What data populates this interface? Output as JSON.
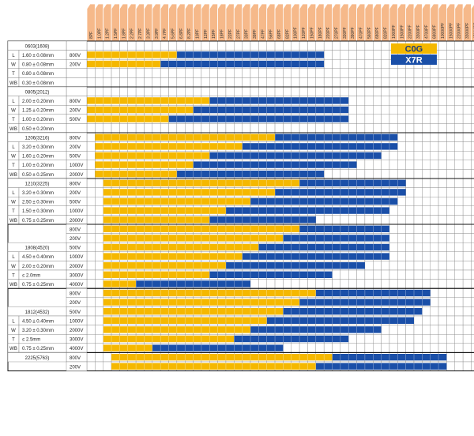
{
  "chart_data": {
    "type": "table",
    "capacitance_columns": [
      "8PF",
      "1.0PF",
      "1.2PF",
      "1.5PF",
      "1.8PF",
      "2.2PF",
      "2.7PF",
      "3.3PF",
      "3.9PF",
      "4.7PF",
      "5.6PF",
      "6.8PF",
      "8.2PF",
      "10PF",
      "12PF",
      "15PF",
      "18PF",
      "22PF",
      "27PF",
      "33PF",
      "39PF",
      "47PF",
      "56PF",
      "68PF",
      "82PF",
      "100PF",
      "120PF",
      "150PF",
      "180PF",
      "220PF",
      "270PF",
      "330PF",
      "390PF",
      "470PF",
      "560PF",
      "680PF",
      "820PF",
      "1000PF",
      "1500PF",
      "2200PF",
      "3300PF",
      "4700PF",
      "6800PF",
      "10000PF",
      "15000PF",
      "22000PF",
      "33000PF",
      "47000PF",
      "68000PF",
      "100000PF",
      "150000PF",
      "220000PF"
    ],
    "legend": [
      {
        "label": "C0G",
        "color": "#f5b800"
      },
      {
        "label": "X7R",
        "color": "#1a4fa8"
      }
    ],
    "sizes": [
      {
        "name": "0603(1608)",
        "dims": [
          {
            "key": "L",
            "value": "1.60 ± 0.08mm"
          },
          {
            "key": "W",
            "value": "0.80 ± 0.08mm"
          },
          {
            "key": "T",
            "value": "0.80 ± 0.08mm"
          },
          {
            "key": "WB",
            "value": "0.30 ± 0.08mm"
          }
        ],
        "rows": [
          {
            "voltage": "",
            "c0g": [
              0,
              0
            ],
            "x7r": [
              0,
              0
            ]
          },
          {
            "voltage": "800V",
            "c0g": [
              0,
              11
            ],
            "x7r": [
              11,
              29
            ]
          },
          {
            "voltage": "200V",
            "c0g": [
              0,
              9
            ],
            "x7r": [
              9,
              29
            ]
          },
          {
            "voltage": "",
            "c0g": [
              0,
              0
            ],
            "x7r": [
              0,
              0
            ]
          },
          {
            "voltage": "",
            "c0g": [
              0,
              0
            ],
            "x7r": [
              0,
              0
            ]
          }
        ]
      },
      {
        "name": "0805(2012)",
        "dims": [
          {
            "key": "L",
            "value": "2.00 ± 0.20mm"
          },
          {
            "key": "W",
            "value": "1.25 ± 0.20mm"
          },
          {
            "key": "T",
            "value": "1.00 ± 0.20mm"
          },
          {
            "key": "WB",
            "value": "0.50 ± 0.20mm"
          }
        ],
        "rows": [
          {
            "voltage": "",
            "c0g": [
              0,
              0
            ],
            "x7r": [
              0,
              0
            ]
          },
          {
            "voltage": "800V",
            "c0g": [
              0,
              15
            ],
            "x7r": [
              15,
              32
            ]
          },
          {
            "voltage": "200V",
            "c0g": [
              0,
              13
            ],
            "x7r": [
              13,
              32
            ]
          },
          {
            "voltage": "500V",
            "c0g": [
              0,
              10
            ],
            "x7r": [
              10,
              32
            ]
          },
          {
            "voltage": "",
            "c0g": [
              0,
              0
            ],
            "x7r": [
              0,
              0
            ]
          }
        ]
      },
      {
        "name": "1206(3216)",
        "dims": [
          {
            "key": "L",
            "value": "3.20 ± 0.30mm"
          },
          {
            "key": "W",
            "value": "1.60 ± 0.20mm"
          },
          {
            "key": "T",
            "value": "1.00 ± 0.20mm"
          },
          {
            "key": "WB",
            "value": "0.50 ± 0.25mm"
          }
        ],
        "rows": [
          {
            "voltage": "800V",
            "c0g": [
              1,
              23
            ],
            "x7r": [
              23,
              38
            ]
          },
          {
            "voltage": "200V",
            "c0g": [
              1,
              19
            ],
            "x7r": [
              19,
              38
            ]
          },
          {
            "voltage": "500V",
            "c0g": [
              1,
              15
            ],
            "x7r": [
              15,
              36
            ]
          },
          {
            "voltage": "1000V",
            "c0g": [
              1,
              13
            ],
            "x7r": [
              13,
              33
            ]
          },
          {
            "voltage": "2000V",
            "c0g": [
              1,
              11
            ],
            "x7r": [
              11,
              29
            ]
          }
        ]
      },
      {
        "name": "1210(3225)",
        "dims": [
          {
            "key": "L",
            "value": "3.20 ± 0.30mm"
          },
          {
            "key": "W",
            "value": "2.50 ± 0.30mm"
          },
          {
            "key": "T",
            "value": "1.50 ± 0.30mm"
          },
          {
            "key": "WB",
            "value": "0.75 ± 0.25mm"
          }
        ],
        "rows": [
          {
            "voltage": "800V",
            "c0g": [
              2,
              26
            ],
            "x7r": [
              26,
              39
            ]
          },
          {
            "voltage": "200V",
            "c0g": [
              2,
              23
            ],
            "x7r": [
              23,
              39
            ]
          },
          {
            "voltage": "500V",
            "c0g": [
              2,
              20
            ],
            "x7r": [
              20,
              38
            ]
          },
          {
            "voltage": "1000V",
            "c0g": [
              2,
              17
            ],
            "x7r": [
              17,
              37
            ]
          },
          {
            "voltage": "2000V",
            "c0g": [
              2,
              15
            ],
            "x7r": [
              15,
              28
            ]
          }
        ]
      },
      {
        "name": "1808(4520)",
        "dims": [
          {
            "key": "L",
            "value": "4.50 ± 0.40mm"
          },
          {
            "key": "W",
            "value": "2.00 ± 0.20mm"
          },
          {
            "key": "T",
            "value": "≤ 2.0mm"
          },
          {
            "key": "WB",
            "value": "0.75 ± 0.25mm"
          }
        ],
        "rows": [
          {
            "voltage": "800V",
            "c0g": [
              2,
              26
            ],
            "x7r": [
              26,
              37
            ]
          },
          {
            "voltage": "200V",
            "c0g": [
              2,
              24
            ],
            "x7r": [
              24,
              37
            ]
          },
          {
            "voltage": "500V",
            "c0g": [
              2,
              21
            ],
            "x7r": [
              21,
              37
            ]
          },
          {
            "voltage": "1000V",
            "c0g": [
              2,
              19
            ],
            "x7r": [
              19,
              37
            ]
          },
          {
            "voltage": "2000V",
            "c0g": [
              2,
              17
            ],
            "x7r": [
              17,
              34
            ]
          },
          {
            "voltage": "3000V",
            "c0g": [
              2,
              15
            ],
            "x7r": [
              15,
              30
            ]
          },
          {
            "voltage": "4000V",
            "c0g": [
              2,
              6
            ],
            "x7r": [
              6,
              20
            ]
          }
        ]
      },
      {
        "name": "1812(4532)",
        "dims": [
          {
            "key": "L",
            "value": "4.50 ± 0.40mm"
          },
          {
            "key": "W",
            "value": "3.20 ± 0.30mm"
          },
          {
            "key": "T",
            "value": "≤ 2.5mm"
          },
          {
            "key": "WB",
            "value": "0.75 ± 0.25mm"
          }
        ],
        "rows": [
          {
            "voltage": "800V",
            "c0g": [
              2,
              28
            ],
            "x7r": [
              28,
              42
            ]
          },
          {
            "voltage": "200V",
            "c0g": [
              2,
              26
            ],
            "x7r": [
              26,
              42
            ]
          },
          {
            "voltage": "500V",
            "c0g": [
              2,
              24
            ],
            "x7r": [
              24,
              41
            ]
          },
          {
            "voltage": "1000V",
            "c0g": [
              2,
              22
            ],
            "x7r": [
              22,
              40
            ]
          },
          {
            "voltage": "2000V",
            "c0g": [
              2,
              20
            ],
            "x7r": [
              20,
              36
            ]
          },
          {
            "voltage": "3000V",
            "c0g": [
              2,
              18
            ],
            "x7r": [
              18,
              32
            ]
          },
          {
            "voltage": "4000V",
            "c0g": [
              2,
              8
            ],
            "x7r": [
              8,
              24
            ]
          }
        ]
      },
      {
        "name": "2225(5763)",
        "dims": [],
        "rows": [
          {
            "voltage": "800V",
            "c0g": [
              3,
              30
            ],
            "x7r": [
              30,
              44
            ]
          },
          {
            "voltage": "200V",
            "c0g": [
              3,
              28
            ],
            "x7r": [
              28,
              44
            ]
          }
        ]
      }
    ]
  }
}
